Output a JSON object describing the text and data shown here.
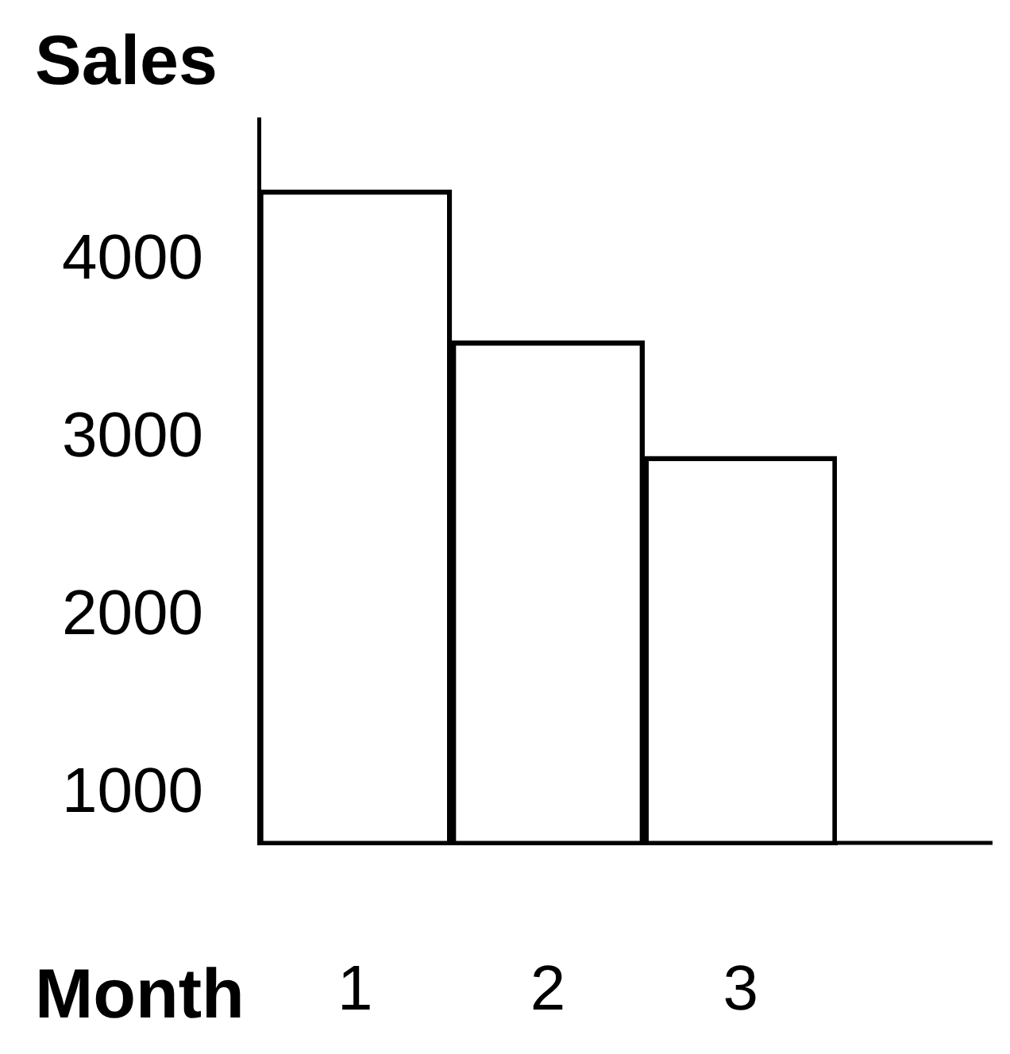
{
  "chart_data": {
    "type": "bar",
    "title": "Sales",
    "xlabel": "Month",
    "categories": [
      "1",
      "2",
      "3"
    ],
    "values": [
      4400,
      3550,
      2900
    ],
    "color": "#000000",
    "ylim": [
      725,
      4800
    ],
    "yticks": [
      1000,
      2000,
      3000,
      4000
    ],
    "grid": false,
    "legend": false
  }
}
